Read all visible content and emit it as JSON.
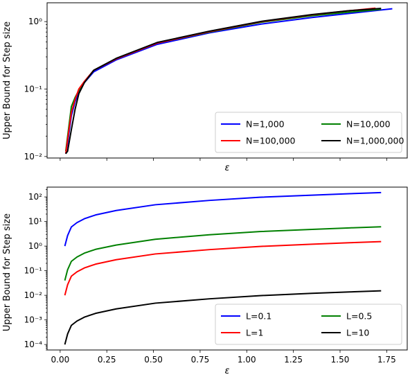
{
  "chart_data": [
    {
      "type": "line",
      "title": "",
      "xlabel": "ε",
      "ylabel": "Upper Bound for Step size",
      "yscale": "log",
      "ylim": [
        0.0095,
        1.9
      ],
      "xlim": [
        -0.07,
        1.86
      ],
      "x_ticks_shown": [
        0.0,
        0.25,
        0.5,
        0.75,
        1.0,
        1.25,
        1.5,
        1.75
      ],
      "x_tick_labels_visible": false,
      "y_tick_labels": [
        "10⁻²",
        "10⁻¹",
        "10⁰"
      ],
      "legend": {
        "placement": "lower-right",
        "columns": 2
      },
      "series": [
        {
          "name": "N=1,000",
          "color": "#0000ff",
          "x": [
            0.03,
            0.04,
            0.06,
            0.08,
            0.1,
            0.13,
            0.18,
            0.3,
            0.52,
            0.8,
            1.08,
            1.35,
            1.55,
            1.78
          ],
          "y": [
            0.011,
            0.016,
            0.04,
            0.065,
            0.09,
            0.125,
            0.18,
            0.27,
            0.46,
            0.68,
            0.92,
            1.15,
            1.32,
            1.55
          ]
        },
        {
          "name": "N=10,000",
          "color": "#008000",
          "x": [
            0.03,
            0.04,
            0.06,
            0.08,
            0.1,
            0.13,
            0.18,
            0.3,
            0.52,
            0.8,
            1.08,
            1.35,
            1.55,
            1.72
          ],
          "y": [
            0.012,
            0.02,
            0.055,
            0.075,
            0.095,
            0.125,
            0.19,
            0.28,
            0.48,
            0.7,
            0.98,
            1.22,
            1.38,
            1.52
          ]
        },
        {
          "name": "N=100,000",
          "color": "#ff0000",
          "x": [
            0.03,
            0.04,
            0.06,
            0.08,
            0.1,
            0.13,
            0.18,
            0.3,
            0.52,
            0.8,
            1.08,
            1.35,
            1.55,
            1.69
          ],
          "y": [
            0.011,
            0.018,
            0.045,
            0.07,
            0.1,
            0.13,
            0.19,
            0.28,
            0.48,
            0.71,
            1.0,
            1.26,
            1.45,
            1.58
          ]
        },
        {
          "name": "N=1,000,000",
          "color": "#000000",
          "x": [
            0.03,
            0.04,
            0.06,
            0.08,
            0.1,
            0.13,
            0.18,
            0.3,
            0.52,
            0.8,
            1.08,
            1.35,
            1.55,
            1.72
          ],
          "y": [
            0.011,
            0.012,
            0.025,
            0.05,
            0.085,
            0.125,
            0.19,
            0.285,
            0.49,
            0.72,
            1.01,
            1.27,
            1.45,
            1.57
          ]
        }
      ]
    },
    {
      "type": "line",
      "title": "",
      "xlabel": "ε",
      "ylabel": "Upper Bound for Step size",
      "yscale": "log",
      "ylim": [
        6e-05,
        250
      ],
      "xlim": [
        -0.07,
        1.86
      ],
      "x_ticks_shown": [
        0.0,
        0.25,
        0.5,
        0.75,
        1.0,
        1.25,
        1.5,
        1.75
      ],
      "x_tick_labels": [
        "0.00",
        "0.25",
        "0.50",
        "0.75",
        "1.00",
        "1.25",
        "1.50",
        "1.75"
      ],
      "y_tick_labels": [
        "10⁻⁴",
        "10⁻³",
        "10⁻²",
        "10⁻¹",
        "10⁰",
        "10¹",
        "10²"
      ],
      "legend": {
        "placement": "lower-right",
        "columns": 2
      },
      "series": [
        {
          "name": "L=0.1",
          "color": "#0000ff",
          "x": [
            0.025,
            0.04,
            0.06,
            0.09,
            0.13,
            0.19,
            0.3,
            0.51,
            0.8,
            1.07,
            1.35,
            1.55,
            1.72
          ],
          "y": [
            1.0,
            2.7,
            6.0,
            9.0,
            13.0,
            18.5,
            28.0,
            48.0,
            72.0,
            97.0,
            118.0,
            135.0,
            150.0
          ]
        },
        {
          "name": "L=0.5",
          "color": "#008000",
          "x": [
            0.025,
            0.04,
            0.06,
            0.09,
            0.13,
            0.19,
            0.3,
            0.51,
            0.8,
            1.07,
            1.35,
            1.55,
            1.72
          ],
          "y": [
            0.04,
            0.11,
            0.24,
            0.36,
            0.52,
            0.74,
            1.1,
            1.9,
            2.9,
            3.9,
            4.8,
            5.5,
            6.1
          ]
        },
        {
          "name": "L=1",
          "color": "#ff0000",
          "x": [
            0.025,
            0.04,
            0.06,
            0.09,
            0.13,
            0.19,
            0.3,
            0.51,
            0.8,
            1.07,
            1.35,
            1.55,
            1.72
          ],
          "y": [
            0.01,
            0.027,
            0.06,
            0.09,
            0.13,
            0.185,
            0.28,
            0.48,
            0.72,
            0.97,
            1.2,
            1.37,
            1.52
          ]
        },
        {
          "name": "L=10",
          "color": "#000000",
          "x": [
            0.025,
            0.04,
            0.06,
            0.09,
            0.13,
            0.19,
            0.3,
            0.51,
            0.8,
            1.07,
            1.35,
            1.55,
            1.72
          ],
          "y": [
            0.0001,
            0.00027,
            0.0006,
            0.0009,
            0.0013,
            0.00185,
            0.0028,
            0.0048,
            0.0072,
            0.0097,
            0.012,
            0.0137,
            0.0152
          ]
        }
      ]
    }
  ]
}
